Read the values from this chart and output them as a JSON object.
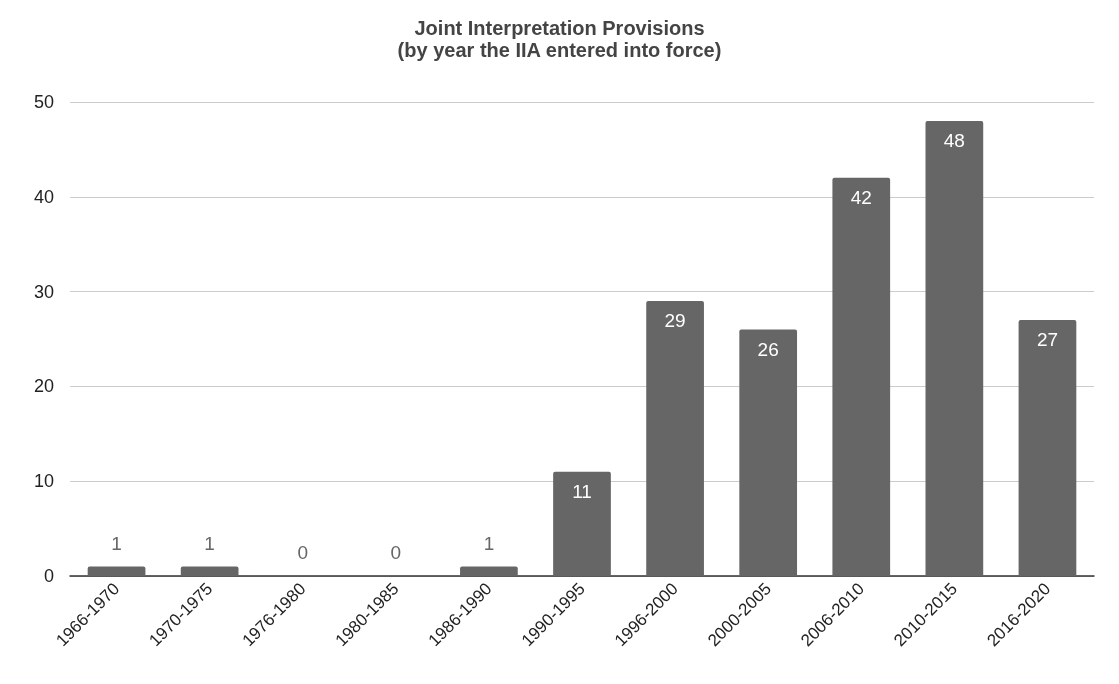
{
  "chart_data": {
    "type": "bar",
    "title": "Joint Interpretation Provisions\n(by year the IIA entered into force)",
    "categories": [
      "1966-1970",
      "1970-1975",
      "1976-1980",
      "1980-1985",
      "1986-1990",
      "1990-1995",
      "1996-2000",
      "2000-2005",
      "2006-2010",
      "2010-2015",
      "2016-2020"
    ],
    "values": [
      1,
      1,
      0,
      0,
      1,
      11,
      29,
      26,
      42,
      48,
      27
    ],
    "color": "#666666",
    "ylim": [
      0,
      50
    ],
    "yticks": [
      0,
      10,
      20,
      30,
      40,
      50
    ],
    "grid": "y",
    "data_labels": true
  }
}
